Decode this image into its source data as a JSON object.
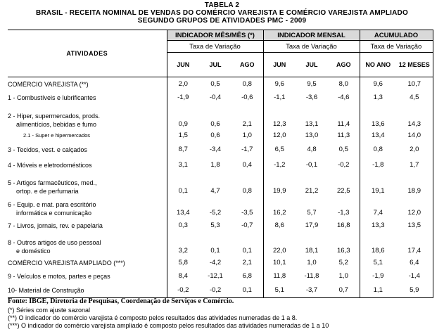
{
  "titles": {
    "line1": "TABELA 2",
    "line2": "BRASIL - RECEITA NOMINAL DE VENDAS DO COMÉRCIO VAREJISTA E COMÉRCIO VAREJISTA AMPLIADO",
    "line3": "SEGUNDO GRUPOS DE ATIVIDADES PMC - 2009"
  },
  "header": {
    "activities": "ATIVIDADES",
    "group_mom": "INDICADOR MÊS/MÊS (*)",
    "group_monthly": "INDICADOR MENSAL",
    "group_accum": "ACUMULADO",
    "rate": "Taxa de Variação",
    "mom_cols": [
      "JUN",
      "JUL",
      "AGO"
    ],
    "monthly_cols": [
      "JUN",
      "JUL",
      "AGO"
    ],
    "accum_cols": [
      "NO ANO",
      "12 MESES"
    ]
  },
  "rows": [
    {
      "label": [
        "COMÉRCIO VAREJISTA (**)"
      ],
      "style": "",
      "values": [
        "2,0",
        "0,5",
        "0,8",
        "9,6",
        "9,5",
        "8,0",
        "9,6",
        "10,7"
      ]
    },
    {
      "label": [
        "1 - Combustíveis e lubrificantes"
      ],
      "style": "",
      "values": [
        "-1,9",
        "-0,4",
        "-0,6",
        "-1,1",
        "-3,6",
        "-4,6",
        "1,3",
        "4,5"
      ]
    },
    {
      "label": [
        "2 - Hiper, supermercados, prods.",
        "alimentícios, bebidas e fumo"
      ],
      "style": "",
      "values": [
        "0,9",
        "0,6",
        "2,1",
        "12,3",
        "13,1",
        "11,4",
        "13,6",
        "14,3"
      ]
    },
    {
      "label": [
        "2.1 - Super e hipermercados"
      ],
      "style": "sub",
      "values": [
        "1,5",
        "0,6",
        "1,0",
        "12,0",
        "13,0",
        "11,3",
        "13,4",
        "14,0"
      ]
    },
    {
      "label": [
        "3 - Tecidos, vest. e calçados"
      ],
      "style": "",
      "values": [
        "8,7",
        "-3,4",
        "-1,7",
        "6,5",
        "4,8",
        "0,5",
        "0,8",
        "2,0"
      ]
    },
    {
      "label": [
        "4 - Móveis e eletrodomésticos"
      ],
      "style": "",
      "values": [
        "3,1",
        "1,8",
        "0,4",
        "-1,2",
        "-0,1",
        "-0,2",
        "-1,8",
        "1,7"
      ]
    },
    {
      "label": [
        "5 - Artigos farmacêuticos, med.,",
        "ortop. e de perfumaria"
      ],
      "style": "",
      "values": [
        "0,1",
        "4,7",
        "0,8",
        "19,9",
        "21,2",
        "22,5",
        "19,1",
        "18,9"
      ]
    },
    {
      "label": [
        "6 - Equip. e mat. para escritório",
        "informática e comunicação"
      ],
      "style": "",
      "values": [
        "13,4",
        "-5,2",
        "-3,5",
        "16,2",
        "5,7",
        "-1,3",
        "7,4",
        "12,0"
      ]
    },
    {
      "label": [
        "7 - Livros, jornais, rev. e papelaria"
      ],
      "style": "",
      "values": [
        "0,3",
        "5,3",
        "-0,7",
        "8,6",
        "17,9",
        "16,8",
        "13,3",
        "13,5"
      ]
    },
    {
      "label": [
        "8 - Outros artigos de uso pessoal",
        "e doméstico"
      ],
      "style": "",
      "values": [
        "3,2",
        "0,1",
        "0,1",
        "22,0",
        "18,1",
        "16,3",
        "18,6",
        "17,4"
      ]
    },
    {
      "label": [
        "COMÉRCIO VAREJISTA AMPLIADO (***)"
      ],
      "style": "",
      "values": [
        "5,8",
        "-4,2",
        "2,1",
        "10,1",
        "1,0",
        "5,2",
        "5,1",
        "6,4"
      ]
    },
    {
      "label": [
        "9 - Veículos e motos, partes e peças"
      ],
      "style": "",
      "values": [
        "8,4",
        "-12,1",
        "6,8",
        "11,8",
        "-11,8",
        "1,0",
        "-1,9",
        "-1,4"
      ]
    },
    {
      "label": [
        "10- Material de Construção"
      ],
      "style": "",
      "values": [
        "-0,2",
        "-0,2",
        "0,1",
        "5,1",
        "-3,7",
        "0,7",
        "1,1",
        "5,9"
      ]
    }
  ],
  "footer": {
    "source": "Fonte: IBGE, Diretoria de Pesquisas, Coordenação de Serviços e Comércio.",
    "notes": [
      "(*) Séries com ajuste sazonal",
      "(**) O indicador do comércio varejista é composto pelos resultados das atividades numeradas de 1 a 8.",
      "(***) O indicador do comércio varejista ampliado é composto pelos resultados das atividades numeradas de 1 a 10"
    ]
  }
}
